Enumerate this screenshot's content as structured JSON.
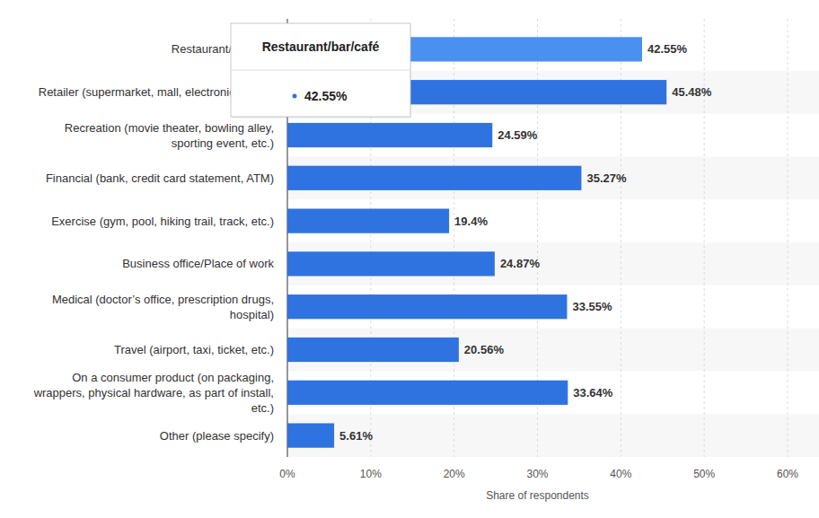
{
  "chart_data": {
    "type": "bar",
    "orientation": "horizontal",
    "categories": [
      "Restaurant/bar/café",
      "Retailer (supermarket, mall, electronics store)",
      "Recreation (movie theater, bowling alley, sporting event, etc.)",
      "Financial (bank, credit card statement, ATM)",
      "Exercise (gym, pool, hiking trail, track, etc.)",
      "Business office/Place of work",
      "Medical (doctor’s office, prescription drugs, hospital)",
      "Travel (airport, taxi, ticket, etc.)",
      "On a consumer product (on packaging, wrappers, physical hardware, as part of install, etc.)",
      "Other (please specify)"
    ],
    "values": [
      42.55,
      45.48,
      24.59,
      35.27,
      19.4,
      24.87,
      33.55,
      20.56,
      33.64,
      5.61
    ],
    "value_labels": [
      "42.55%",
      "45.48%",
      "24.59%",
      "35.27%",
      "19.4%",
      "24.87%",
      "33.55%",
      "20.56%",
      "33.64%",
      "5.61%"
    ],
    "data_labels": true,
    "colors": [
      "#4a90f0",
      "#2f73e0",
      "#2f73e0",
      "#2f73e0",
      "#2f73e0",
      "#2f73e0",
      "#2f73e0",
      "#2f73e0",
      "#2f73e0",
      "#2f73e0"
    ],
    "x_label": "Share of respondents",
    "xlim": [
      0,
      60
    ],
    "xticks": [
      {
        "value": 0,
        "label": "0%"
      },
      {
        "value": 10,
        "label": "10%"
      },
      {
        "value": 20,
        "label": "20%"
      },
      {
        "value": 30,
        "label": "30%"
      },
      {
        "value": 40,
        "label": "40%"
      },
      {
        "value": 50,
        "label": "50%"
      },
      {
        "value": 60,
        "label": "60%"
      }
    ],
    "grid": true,
    "annotations": [
      {
        "text": "Restaurant/bar/café",
        "label": "42.55%"
      }
    ]
  }
}
